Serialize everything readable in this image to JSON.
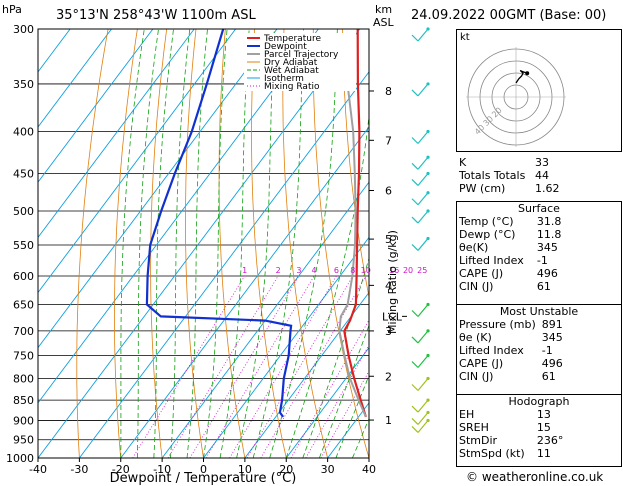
{
  "header": {
    "hpa_label": "hPa",
    "location": "35°13'N 258°43'W 1100m ASL",
    "km_label": "km",
    "asl_label": "ASL",
    "datetime": "24.09.2022 00GMT (Base: 00)"
  },
  "chart_data": {
    "type": "line",
    "subtype": "skew-T log-P diagram",
    "xlabel": "Dewpoint / Temperature (°C)",
    "ylabel": "",
    "xlim": [
      -40,
      40
    ],
    "ylim": [
      1000,
      300
    ],
    "y_scale": "log",
    "x_ticks": [
      -40,
      -30,
      -20,
      -10,
      0,
      10,
      20,
      30,
      40
    ],
    "pressure_levels": [
      300,
      350,
      400,
      450,
      500,
      550,
      600,
      650,
      700,
      750,
      800,
      850,
      900,
      950,
      1000
    ],
    "km_ticks": [
      {
        "label": "8",
        "p": 357
      },
      {
        "label": "7",
        "p": 410
      },
      {
        "label": "6",
        "p": 472
      },
      {
        "label": "5",
        "p": 541
      },
      {
        "label": "4",
        "p": 616
      },
      {
        "label": "3",
        "p": 700
      },
      {
        "label": "2",
        "p": 795
      },
      {
        "label": "1",
        "p": 899
      }
    ],
    "lcl": {
      "label": "LCL",
      "p": 672
    },
    "mixing_ratio_label": "Mixing Ratio (g/kg)",
    "mixing_ratios": [
      "1",
      "2",
      "3",
      "4",
      "6",
      "8",
      "10",
      "16",
      "20",
      "25"
    ],
    "legend": [
      "Temperature",
      "Dewpoint",
      "Parcel Trajectory",
      "Dry Adiabat",
      "Wet Adiabat",
      "Isotherm",
      "Mixing Ratio"
    ],
    "legend_position": "top-left",
    "series": [
      {
        "name": "Temperature",
        "color": "#e02020",
        "points": [
          [
            891,
            31.8
          ],
          [
            850,
            27.5
          ],
          [
            800,
            22.0
          ],
          [
            750,
            16.5
          ],
          [
            700,
            11.0
          ],
          [
            680,
            10.5
          ],
          [
            650,
            9.0
          ],
          [
            600,
            4.0
          ],
          [
            550,
            -1.5
          ],
          [
            500,
            -7.5
          ],
          [
            450,
            -14.0
          ],
          [
            400,
            -21.5
          ],
          [
            350,
            -30.5
          ],
          [
            300,
            -40.5
          ]
        ]
      },
      {
        "name": "Dewpoint",
        "color": "#1030d0",
        "points": [
          [
            891,
            11.8
          ],
          [
            880,
            10.2
          ],
          [
            850,
            8.5
          ],
          [
            800,
            5.0
          ],
          [
            750,
            2.0
          ],
          [
            700,
            -2.0
          ],
          [
            690,
            -2.8
          ],
          [
            680,
            -10.0
          ],
          [
            672,
            -36.0
          ],
          [
            650,
            -41.5
          ],
          [
            600,
            -46.5
          ],
          [
            550,
            -51.5
          ],
          [
            500,
            -55.0
          ],
          [
            450,
            -58.5
          ],
          [
            400,
            -62.0
          ],
          [
            350,
            -67.0
          ],
          [
            300,
            -73.0
          ]
        ]
      },
      {
        "name": "Parcel Trajectory",
        "color": "#a0a0a0",
        "points": [
          [
            891,
            31.8
          ],
          [
            850,
            27.0
          ],
          [
            800,
            21.0
          ],
          [
            750,
            15.5
          ],
          [
            700,
            9.8
          ],
          [
            672,
            7.5
          ],
          [
            650,
            7.0
          ],
          [
            600,
            3.0
          ],
          [
            550,
            -2.0
          ],
          [
            500,
            -8.0
          ],
          [
            450,
            -15.0
          ],
          [
            400,
            -23.0
          ],
          [
            350,
            -33.0
          ]
        ]
      }
    ],
    "wind_barbs": [
      {
        "p": 300,
        "color": "#20c0c0"
      },
      {
        "p": 350,
        "color": "#20c0c0"
      },
      {
        "p": 400,
        "color": "#20c0c0"
      },
      {
        "p": 430,
        "color": "#20c0c0"
      },
      {
        "p": 450,
        "color": "#20c0c0"
      },
      {
        "p": 475,
        "color": "#20c0c0"
      },
      {
        "p": 500,
        "color": "#20c0c0"
      },
      {
        "p": 540,
        "color": "#20c0c0"
      },
      {
        "p": 650,
        "color": "#20c040"
      },
      {
        "p": 700,
        "color": "#20c040"
      },
      {
        "p": 750,
        "color": "#20c040"
      },
      {
        "p": 800,
        "color": "#a0c020"
      },
      {
        "p": 850,
        "color": "#a0c020"
      },
      {
        "p": 880,
        "color": "#a0c020"
      },
      {
        "p": 900,
        "color": "#a0c020"
      }
    ]
  },
  "hodograph": {
    "unit_label": "kt",
    "ring_labels": [
      "20",
      "30",
      "40"
    ],
    "points": [
      [
        0,
        0
      ],
      [
        2,
        3
      ],
      [
        4,
        5
      ],
      [
        5,
        7
      ],
      [
        3,
        9
      ],
      [
        5,
        8
      ],
      [
        8,
        7
      ]
    ]
  },
  "indices": {
    "K": {
      "label": "K",
      "value": "33"
    },
    "TT": {
      "label": "Totals Totals",
      "value": "44"
    },
    "PW": {
      "label": "PW (cm)",
      "value": "1.62"
    }
  },
  "surface": {
    "title": "Surface",
    "rows": [
      {
        "label": "Temp (°C)",
        "value": "31.8"
      },
      {
        "label": "Dewp (°C)",
        "value": "11.8"
      },
      {
        "label": "θe(K)",
        "value": "345"
      },
      {
        "label": "Lifted Index",
        "value": "-1"
      },
      {
        "label": "CAPE (J)",
        "value": "496"
      },
      {
        "label": "CIN (J)",
        "value": "61"
      }
    ]
  },
  "most_unstable": {
    "title": "Most Unstable",
    "rows": [
      {
        "label": "Pressure (mb)",
        "value": "891"
      },
      {
        "label": "θe (K)",
        "value": "345"
      },
      {
        "label": "Lifted Index",
        "value": "-1"
      },
      {
        "label": "CAPE (J)",
        "value": "496"
      },
      {
        "label": "CIN (J)",
        "value": "61"
      }
    ]
  },
  "hodograph_table": {
    "title": "Hodograph",
    "rows": [
      {
        "label": "EH",
        "value": "13"
      },
      {
        "label": "SREH",
        "value": "15"
      },
      {
        "label": "StmDir",
        "value": "236°"
      },
      {
        "label": "StmSpd (kt)",
        "value": "11"
      }
    ]
  },
  "footer": "© weatheronline.co.uk",
  "colors": {
    "temperature": "#e02020",
    "dewpoint": "#1030d0",
    "parcel": "#a0a0a0",
    "dry_adiabat": "#e08010",
    "wet_adiabat": "#10a010",
    "isotherm": "#10a0e0",
    "mixing_ratio": "#d010d0"
  }
}
